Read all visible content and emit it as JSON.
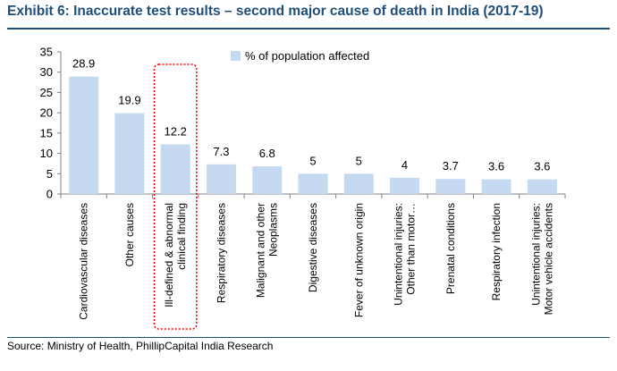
{
  "title": "Exhibit 6:  Inaccurate test results – second major cause of death in India (2017-19)",
  "source": "Source: Ministry of Health, PhillipCapital India Research",
  "colors": {
    "bar": "#c5d9f1",
    "highlight": "#ff0000",
    "title": "#1f4e79",
    "axis": "#808080"
  },
  "chart_data": {
    "type": "bar",
    "categories": [
      [
        "Cardiovascular diseases"
      ],
      [
        "Other causes"
      ],
      [
        "Ill-defined & abnormal",
        "clinical finding"
      ],
      [
        "Respiratory diseases"
      ],
      [
        "Malignant and other",
        "Neoplasms"
      ],
      [
        "Digestive diseases"
      ],
      [
        "Fever of unknown origin"
      ],
      [
        "Unintentional injuries:",
        "Other than motor…"
      ],
      [
        "Prenatal conditions"
      ],
      [
        "Respiratory infection"
      ],
      [
        "Unintentional injuries:",
        "Motor vehicle accidents"
      ]
    ],
    "series": [
      {
        "name": "% of population affected",
        "values": [
          28.9,
          19.9,
          12.2,
          7.3,
          6.8,
          5,
          5,
          4,
          3.7,
          3.6,
          3.6
        ],
        "labels": [
          "28.9",
          "19.9",
          "12.2",
          "7.3",
          "6.8",
          "5",
          "5",
          "4",
          "3.7",
          "3.6",
          "3.6"
        ]
      }
    ],
    "ylim": [
      0,
      35
    ],
    "yticks": [
      0,
      5,
      10,
      15,
      20,
      25,
      30,
      35
    ],
    "highlight_index": 2,
    "legend": "top-right",
    "grid": false
  }
}
